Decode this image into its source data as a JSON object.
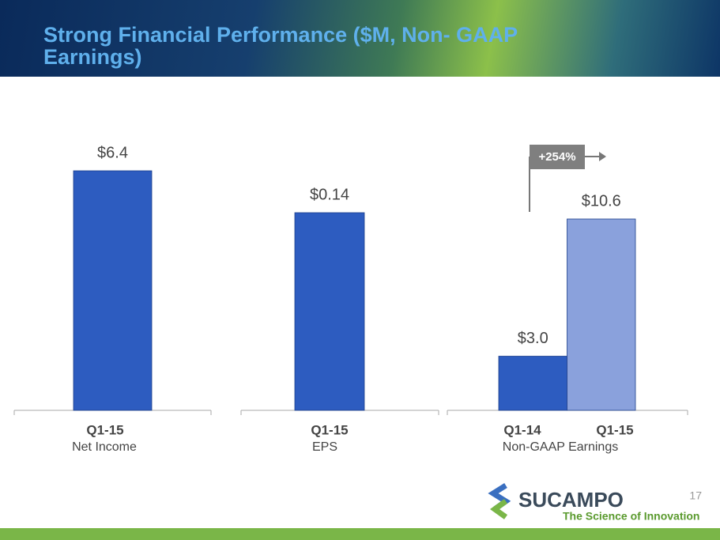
{
  "title": "Strong Financial Performance ($M, Non- GAAP Earnings)",
  "chart_data": [
    {
      "type": "bar",
      "categories": [
        "Q1-15"
      ],
      "values": [
        6.4
      ],
      "value_labels": [
        "$6.4"
      ],
      "colors": [
        "#2d5cc0"
      ],
      "xlabel": "Net Income"
    },
    {
      "type": "bar",
      "categories": [
        "Q1-15"
      ],
      "values": [
        0.14
      ],
      "value_labels": [
        "$0.14"
      ],
      "colors": [
        "#2d5cc0"
      ],
      "xlabel": "EPS"
    },
    {
      "type": "bar",
      "categories": [
        "Q1-14",
        "Q1-15"
      ],
      "values": [
        3.0,
        10.6
      ],
      "value_labels": [
        "$3.0",
        "$10.6"
      ],
      "colors": [
        "#2d5cc0",
        "#8aa1dc"
      ],
      "xlabel": "Non-GAAP Earnings",
      "annotation": "+254%"
    }
  ],
  "page_number": "17",
  "logo": {
    "name": "SUCAMPO",
    "tagline": "The Science of Innovation"
  }
}
